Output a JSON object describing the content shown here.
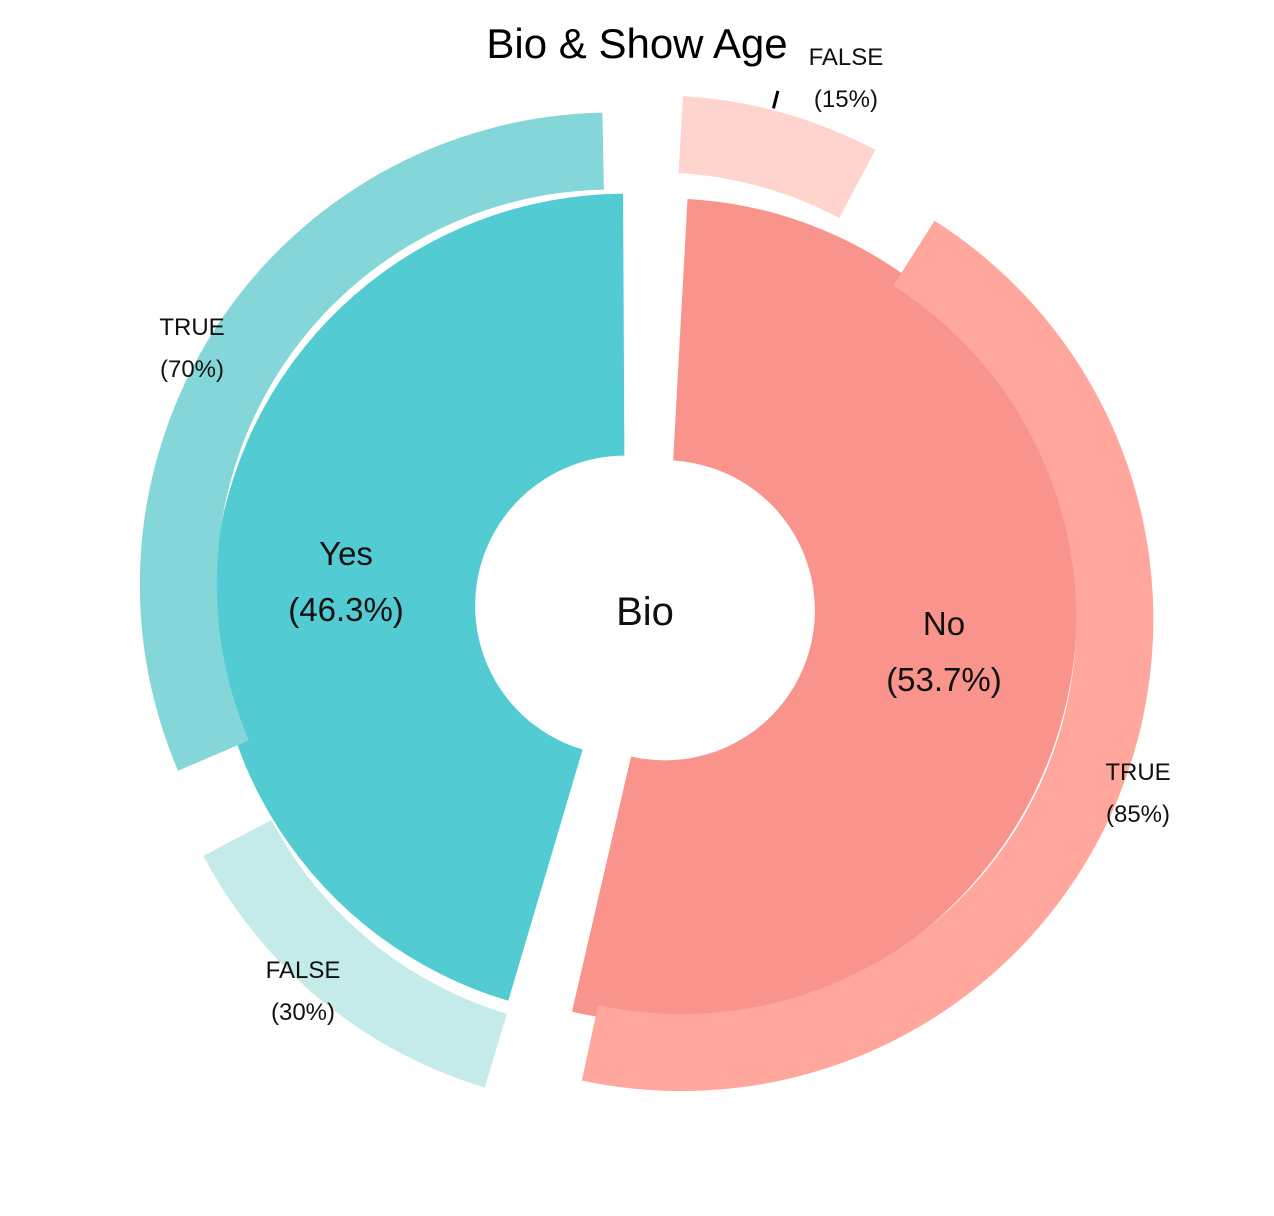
{
  "chart_data": {
    "type": "pie",
    "title": "Bio & Show Age",
    "center_label": "Bio",
    "inner": [
      {
        "name": "Yes",
        "pct_label": "(46.3%)",
        "value": 46.3,
        "color": "#52cbd2"
      },
      {
        "name": "No",
        "pct_label": "(53.7%)",
        "value": 53.7,
        "color": "#f9948c"
      }
    ],
    "outer": [
      {
        "parent": "Yes",
        "name": "TRUE",
        "pct_label": "(70%)",
        "value": 70,
        "color": "#85d6d8"
      },
      {
        "parent": "Yes",
        "name": "FALSE",
        "pct_label": "(30%)",
        "value": 30,
        "color": "#c4eaea"
      },
      {
        "parent": "No",
        "name": "TRUE",
        "pct_label": "(85%)",
        "value": 85,
        "color": "#ffa69d"
      },
      {
        "parent": "No",
        "name": "FALSE",
        "pct_label": "(15%)",
        "value": 15,
        "color": "#ffd3ce"
      }
    ]
  }
}
